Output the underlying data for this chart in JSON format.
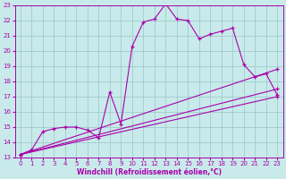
{
  "bg_color": "#c8eaea",
  "grid_color": "#a0cccc",
  "line_color": "#aa00aa",
  "xlabel": "Windchill (Refroidissement éolien,°C)",
  "xlabel_color": "#aa00aa",
  "xlim": [
    -0.5,
    23.5
  ],
  "ylim": [
    13,
    23
  ],
  "yticks": [
    13,
    14,
    15,
    16,
    17,
    18,
    19,
    20,
    21,
    22,
    23
  ],
  "xticks": [
    0,
    1,
    2,
    3,
    4,
    5,
    6,
    7,
    8,
    9,
    10,
    11,
    12,
    13,
    14,
    15,
    16,
    17,
    18,
    19,
    20,
    21,
    22,
    23
  ],
  "series": [
    {
      "x": [
        0,
        1,
        2,
        3,
        4,
        5,
        6,
        7,
        8,
        9,
        10,
        11,
        12,
        13,
        14,
        15,
        16,
        17,
        18,
        19,
        20,
        21,
        22,
        23
      ],
      "y": [
        13.2,
        13.5,
        14.7,
        14.9,
        15.0,
        15.0,
        14.8,
        14.3,
        17.3,
        15.2,
        20.3,
        21.9,
        22.1,
        23.1,
        22.1,
        22.0,
        20.8,
        21.1,
        21.3,
        21.5,
        19.1,
        18.3,
        18.5,
        17.1
      ]
    },
    {
      "x": [
        0,
        23
      ],
      "y": [
        13.2,
        18.8
      ]
    },
    {
      "x": [
        0,
        23
      ],
      "y": [
        13.2,
        17.5
      ]
    },
    {
      "x": [
        0,
        23
      ],
      "y": [
        13.2,
        17.0
      ]
    }
  ]
}
